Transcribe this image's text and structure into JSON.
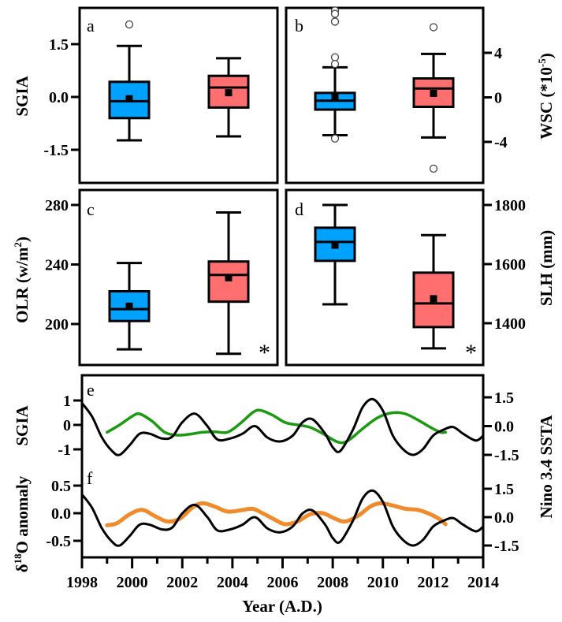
{
  "colors": {
    "group1": "#00a2ff",
    "group2": "#ff6f6f",
    "sgia_line": "#1a9a10",
    "d18o_line": "#f08a2a",
    "nino_line": "#000000"
  },
  "chart_data": [
    {
      "type": "box",
      "panel": "a",
      "ylabel": "SGIA",
      "yticks": [
        "1.5",
        "0.0",
        "-1.5"
      ],
      "ytick_values": [
        1.5,
        0.0,
        -1.5
      ],
      "ylim": [
        -2.5,
        2.5
      ],
      "axis_side": "left",
      "significance": "",
      "boxes": [
        {
          "group": "blue",
          "whisker_high": 1.45,
          "q3": 0.43,
          "median": -0.12,
          "mean": -0.05,
          "q1": -0.6,
          "whisker_low": -1.23,
          "outliers": [
            2.06
          ]
        },
        {
          "group": "red",
          "whisker_high": 1.1,
          "q3": 0.6,
          "median": 0.27,
          "mean": 0.12,
          "q1": -0.3,
          "whisker_low": -1.12,
          "outliers": []
        }
      ]
    },
    {
      "type": "box",
      "panel": "b",
      "ylabel": "WSC (*10",
      "ylabel_sup": "-5",
      "ylabel_end": ")",
      "yticks": [
        "4",
        "0",
        "-4"
      ],
      "ytick_values": [
        4,
        0,
        -4
      ],
      "ylim": [
        -8,
        8
      ],
      "axis_side": "right",
      "significance": "",
      "boxes": [
        {
          "group": "blue",
          "whisker_high": 2.7,
          "q3": 0.4,
          "median": -0.3,
          "mean": 0.1,
          "q1": -1.1,
          "whisker_low": -3.4,
          "outliers": [
            7.8,
            7.5,
            6.8,
            3.6,
            3.0,
            -3.7
          ]
        },
        {
          "group": "red",
          "whisker_high": 3.9,
          "q3": 1.7,
          "median": 0.8,
          "mean": 0.35,
          "q1": -0.85,
          "whisker_low": -3.6,
          "outliers": [
            6.3,
            -6.4
          ]
        }
      ]
    },
    {
      "type": "box",
      "panel": "c",
      "ylabel": "OLR (w/m",
      "ylabel_sup": "2",
      "ylabel_end": ")",
      "yticks": [
        "280",
        "240",
        "200"
      ],
      "ytick_values": [
        280,
        240,
        200
      ],
      "ylim": [
        170,
        290
      ],
      "axis_side": "left",
      "significance": "*",
      "boxes": [
        {
          "group": "blue",
          "whisker_high": 241,
          "q3": 222,
          "median": 210,
          "mean": 212,
          "q1": 202,
          "whisker_low": 183,
          "outliers": []
        },
        {
          "group": "red",
          "whisker_high": 275,
          "q3": 242,
          "median": 233,
          "mean": 231,
          "q1": 215,
          "whisker_low": 180,
          "outliers": []
        }
      ]
    },
    {
      "type": "box",
      "panel": "d",
      "ylabel": "SLH (mm)",
      "yticks": [
        "1800",
        "1600",
        "1400"
      ],
      "ytick_values": [
        1800,
        1600,
        1400
      ],
      "ylim": [
        1270,
        1850
      ],
      "axis_side": "right",
      "significance": "*",
      "boxes": [
        {
          "group": "blue",
          "whisker_high": 1800,
          "q3": 1723,
          "median": 1675,
          "mean": 1664,
          "q1": 1611,
          "whisker_low": 1464,
          "outliers": []
        },
        {
          "group": "red",
          "whisker_high": 1698,
          "q3": 1571,
          "median": 1467,
          "mean": 1483,
          "q1": 1387,
          "whisker_low": 1315,
          "outliers": []
        }
      ]
    },
    {
      "type": "line",
      "panel": "e",
      "ylabel_left": "SGIA",
      "ylabel_right": "Nino 3.4 SSTA",
      "left_yticks": [
        "1",
        "0",
        "-1"
      ],
      "left_ytick_values": [
        1,
        0,
        -1
      ],
      "right_yticks": [
        "1.5",
        "0.0",
        "-1.5"
      ],
      "right_ytick_values": [
        1.5,
        0.0,
        -1.5
      ],
      "series": [
        {
          "name": "SGIA",
          "axis": "left",
          "color_key": "sgia_line",
          "x": [
            1999.0,
            1999.5,
            2000.0,
            2000.3,
            2000.8,
            2001.3,
            2001.8,
            2002.3,
            2002.8,
            2003.3,
            2003.8,
            2004.3,
            2004.8,
            2005.1,
            2005.6,
            2006.1,
            2006.6,
            2007.1,
            2007.6,
            2008.2,
            2008.6,
            2009.2,
            2009.8,
            2010.4,
            2010.9,
            2011.4,
            2011.9,
            2012.3,
            2012.5
          ],
          "y": [
            -0.3,
            0.0,
            0.35,
            0.45,
            0.15,
            -0.3,
            -0.42,
            -0.38,
            -0.3,
            -0.28,
            -0.3,
            0.05,
            0.5,
            0.6,
            0.4,
            0.1,
            0.0,
            -0.1,
            -0.35,
            -0.7,
            -0.65,
            -0.15,
            0.3,
            0.5,
            0.45,
            0.2,
            -0.1,
            -0.3,
            -0.3
          ]
        },
        {
          "name": "Nino 3.4 SSTA",
          "axis": "right",
          "color_key": "nino_line",
          "x": [
            1998.0,
            1998.4,
            1998.8,
            1999.2,
            1999.5,
            1999.9,
            2000.3,
            2000.7,
            2001.2,
            2001.6,
            2002.0,
            2002.5,
            2003.0,
            2003.4,
            2003.9,
            2004.4,
            2004.9,
            2005.4,
            2005.9,
            2006.4,
            2006.8,
            2007.2,
            2007.7,
            2008.0,
            2008.3,
            2008.8,
            2009.2,
            2009.6,
            2010.0,
            2010.4,
            2010.8,
            2011.2,
            2011.6,
            2012.0,
            2012.4,
            2012.8,
            2013.2,
            2013.7,
            2014.0
          ],
          "y": [
            1.2,
            0.5,
            -0.6,
            -1.3,
            -1.5,
            -1.0,
            -0.4,
            -0.4,
            -0.65,
            -0.55,
            0.2,
            0.65,
            0.0,
            -0.7,
            -0.65,
            -0.4,
            0.0,
            -0.6,
            -0.8,
            -0.5,
            0.2,
            0.35,
            -0.4,
            -1.1,
            -1.3,
            -0.2,
            1.0,
            1.4,
            0.8,
            -0.5,
            -1.2,
            -1.5,
            -1.2,
            -0.5,
            -0.2,
            -0.05,
            -0.4,
            -0.75,
            -0.5
          ]
        }
      ]
    },
    {
      "type": "line",
      "panel": "f",
      "ylabel_left": "δ18O anomaly",
      "ylabel_right": "Nino 3.4 SSTA",
      "left_yticks": [
        "0.5",
        "0.0",
        "-0.5"
      ],
      "left_ytick_values": [
        0.5,
        0.0,
        -0.5
      ],
      "right_yticks": [
        "1.5",
        "0.0",
        "-1.5"
      ],
      "right_ytick_values": [
        1.5,
        0.0,
        -1.5
      ],
      "xlabel": "Year (A.D.)",
      "xticks": [
        "1998",
        "2000",
        "2002",
        "2004",
        "2006",
        "2008",
        "2010",
        "2012",
        "2014"
      ],
      "xtick_values": [
        1998,
        2000,
        2002,
        2004,
        2006,
        2008,
        2010,
        2012,
        2014
      ],
      "xlim": [
        1998,
        2014
      ],
      "series": [
        {
          "name": "δ18O anomaly",
          "axis": "left",
          "color_key": "d18o_line",
          "x": [
            1999.0,
            1999.4,
            1999.9,
            2000.4,
            2000.9,
            2001.4,
            2001.9,
            2002.4,
            2002.8,
            2003.3,
            2003.8,
            2004.3,
            2004.8,
            2005.2,
            2005.7,
            2006.1,
            2006.6,
            2007.1,
            2007.6,
            2008.1,
            2008.5,
            2009.0,
            2009.5,
            2009.9,
            2010.4,
            2010.9,
            2011.4,
            2011.9,
            2012.3,
            2012.5
          ],
          "y": [
            -0.22,
            -0.18,
            -0.02,
            0.06,
            -0.05,
            -0.15,
            -0.1,
            0.1,
            0.18,
            0.12,
            0.03,
            0.05,
            0.08,
            0.0,
            -0.12,
            -0.2,
            -0.15,
            -0.02,
            0.0,
            -0.1,
            -0.15,
            -0.05,
            0.12,
            0.18,
            0.14,
            0.08,
            0.06,
            -0.02,
            -0.12,
            -0.2
          ]
        },
        {
          "name": "Nino 3.4 SSTA",
          "axis": "right",
          "color_key": "nino_line",
          "x": [
            1998.0,
            1998.4,
            1998.8,
            1999.2,
            1999.5,
            1999.9,
            2000.3,
            2000.7,
            2001.2,
            2001.6,
            2002.0,
            2002.5,
            2003.0,
            2003.4,
            2003.9,
            2004.4,
            2004.9,
            2005.4,
            2005.9,
            2006.4,
            2006.8,
            2007.2,
            2007.7,
            2008.0,
            2008.3,
            2008.8,
            2009.2,
            2009.6,
            2010.0,
            2010.4,
            2010.8,
            2011.2,
            2011.6,
            2012.0,
            2012.4,
            2012.8,
            2013.2,
            2013.7,
            2014.0
          ],
          "y": [
            1.2,
            0.5,
            -0.6,
            -1.3,
            -1.5,
            -1.0,
            -0.4,
            -0.4,
            -0.65,
            -0.55,
            0.2,
            0.65,
            0.0,
            -0.7,
            -0.65,
            -0.4,
            0.0,
            -0.6,
            -0.8,
            -0.5,
            0.2,
            0.35,
            -0.4,
            -1.1,
            -1.3,
            -0.2,
            1.0,
            1.4,
            0.8,
            -0.5,
            -1.2,
            -1.5,
            -1.2,
            -0.5,
            -0.2,
            -0.05,
            -0.4,
            -0.75,
            -0.5
          ]
        }
      ]
    }
  ],
  "labels": {
    "a": "a",
    "b": "b",
    "c": "c",
    "d": "d",
    "e": "e",
    "f": "f",
    "sgia_a": "SGIA",
    "wsc_main": "WSC (*10",
    "wsc_sup": "-5",
    "wsc_end": ")",
    "olr_main": "OLR (w/m",
    "olr_sup": "2",
    "olr_end": ")",
    "slh": "SLH (mm)",
    "sgia_e": "SGIA",
    "d18o_delta": "δ",
    "d18o_sup": "18",
    "d18o_rest": "O anomaly",
    "nino": "Nino 3.4 SSTA",
    "xlabel": "Year (A.D.)",
    "star_c": "*",
    "star_d": "*"
  }
}
